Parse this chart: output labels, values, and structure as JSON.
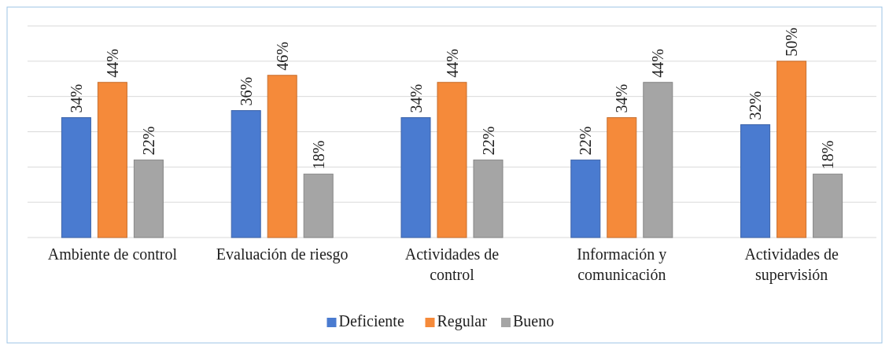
{
  "chart_data": {
    "type": "bar",
    "categories": [
      "Ambiente de control",
      "Evaluación de riesgo",
      "Actividades de control",
      "Información y comunicación",
      "Actividades de supervisión"
    ],
    "series": [
      {
        "name": "Deficiente",
        "color": "#4a7bd0",
        "values": [
          34,
          36,
          34,
          22,
          32
        ],
        "value_labels": [
          "34%",
          "36%",
          "34%",
          "22%",
          "32%"
        ]
      },
      {
        "name": "Regular",
        "color": "#f58a3a",
        "values": [
          44,
          46,
          44,
          34,
          50
        ],
        "value_labels": [
          "44%",
          "46%",
          "44%",
          "34%",
          "50%"
        ]
      },
      {
        "name": "Bueno",
        "color": "#a5a5a5",
        "values": [
          22,
          18,
          22,
          44,
          18
        ],
        "value_labels": [
          "22%",
          "18%",
          "22%",
          "44%",
          "18%"
        ]
      }
    ],
    "ylim": [
      0,
      60
    ],
    "yticks": [
      {
        "value": 0,
        "label": null
      },
      {
        "value": 10,
        "label": null
      },
      {
        "value": 20,
        "label": null
      },
      {
        "value": 30,
        "label": null
      },
      {
        "value": 40,
        "label": null
      },
      {
        "value": 50,
        "label": null
      },
      {
        "value": 60,
        "label": null
      }
    ],
    "grid": "y",
    "tick_labels": "x",
    "legend": "bottom"
  }
}
